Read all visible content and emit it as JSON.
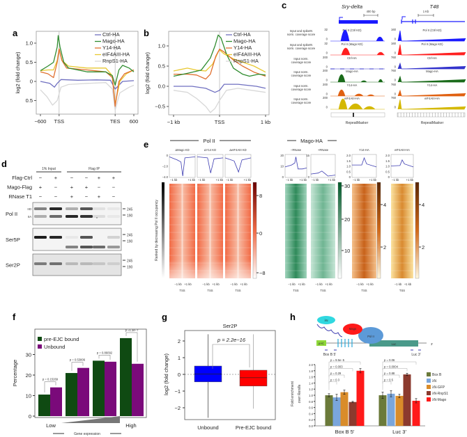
{
  "panel_labels": [
    "a",
    "b",
    "c",
    "d",
    "e",
    "f",
    "g",
    "h"
  ],
  "colors": {
    "ctrl": "#6f6fc0",
    "mago": "#2e8b2e",
    "y14": "#e07030",
    "eif": "#e8c830",
    "rnps1": "#d8d8d8",
    "polctrl": "#1a1aff",
    "polmago": "#ff2020",
    "ctrlha": "#3333cc",
    "magoha": "#1a6b1a",
    "y14ha": "#e06010",
    "eifha": "#d4b800"
  },
  "panel_c": {
    "gene1": "Sry-delta",
    "gene2": "T48",
    "scale1": "400 bp",
    "scale2": "1 Kb",
    "tracks": [
      {
        "label1": "Input and spikeIN",
        "label2": "norm. coverage score",
        "name": "Pol II (Ctrl KD)",
        "max1": "32",
        "max2": "160",
        "min": "0",
        "color": "#1a1aff"
      },
      {
        "label1": "Input and spikeIN",
        "label2": "norm. coverage score",
        "name": "Pol II (Mago KD)",
        "max1": "32",
        "max2": "160",
        "min": "0",
        "color": "#ff2020"
      },
      {
        "label1": "Input norm.",
        "label2": "coverage score",
        "name": "Ctrl-HA",
        "max1": "200",
        "max2": "760",
        "min": "0",
        "color": "#3333cc"
      },
      {
        "label1": "Input norm.",
        "label2": "coverage score",
        "name": "Mago-HA",
        "max1": "200",
        "max2": "760",
        "min": "0",
        "color": "#1a6b1a"
      },
      {
        "label1": "Input norm.",
        "label2": "coverage score",
        "name": "Y14-HA",
        "max1": "200",
        "max2": "760",
        "min": "0",
        "color": "#e06010"
      },
      {
        "label1": "Input norm.",
        "label2": "coverage score",
        "name": "eIF4AIII-HA",
        "max1": "200",
        "max2": "760",
        "min": "0",
        "color": "#d4b800"
      }
    ],
    "repeat_label": "RepeatMasker"
  },
  "panel_d": {
    "header_input": "1% Input",
    "header_ip": "Flag IP",
    "conditions": [
      {
        "name": "Flag-Ctrl",
        "values": [
          "−",
          "+",
          "−",
          "−",
          "+",
          "+"
        ]
      },
      {
        "name": "Mago-Flag",
        "values": [
          "+",
          "−",
          "+",
          "+",
          "−",
          "−"
        ]
      },
      {
        "name": "RNase T1",
        "values": [
          "−",
          "−",
          "+",
          "−",
          "+",
          "−"
        ]
      }
    ],
    "blots": [
      {
        "name": "Pol II",
        "markers": [
          "245",
          "190"
        ]
      },
      {
        "name": "Ser5P",
        "markers": [
          "245",
          "190"
        ]
      },
      {
        "name": "Ser2P",
        "markers": [
          "245",
          "190"
        ]
      }
    ],
    "iio": "IIO",
    "iia": "IIA",
    "star": "*"
  },
  "panel_e": {
    "group1": "Pol II",
    "group2": "Mago-HA",
    "ylabel": "Ranked by decreasing Pol II occupancy",
    "profiles": [
      {
        "title": "ΔMago KD",
        "ticks": [
          "0",
          "−2.0",
          "−4.0"
        ]
      },
      {
        "title": "ΔY14 KD",
        "ticks": []
      },
      {
        "title": "ΔeIF4AIII KD",
        "ticks": []
      },
      {
        "title": "−RNase",
        "ticks": [
          "20",
          "10",
          "0"
        ]
      },
      {
        "title": "+RNase",
        "ticks": [
          "15",
          "0"
        ]
      },
      {
        "title": "Y14-HA",
        "ticks": [
          "2.0",
          "1.5",
          "1.0",
          "0.5",
          "0"
        ]
      },
      {
        "title": "eIF4AIII-HA",
        "ticks": [
          "2.0",
          "1.5",
          "1.0",
          "0.5",
          "0"
        ]
      }
    ],
    "xl": "−1 kb",
    "xr": "+1 kb",
    "tss": "TSS",
    "colorbars": [
      {
        "ticks": [
          "8",
          "0",
          "−8"
        ]
      },
      {
        "ticks": [
          "30",
          "20",
          "10"
        ]
      },
      {
        "ticks": [
          "4",
          "2"
        ]
      },
      {
        "ticks": [
          "4",
          "2"
        ]
      }
    ]
  },
  "panel_h_diagram": {
    "labels": [
      "Mago",
      "λN",
      "Pol II",
      "pAC",
      "Luc",
      "3′",
      "Box B 5′",
      "Luc 3′"
    ]
  },
  "chart_data": [
    {
      "id": "a",
      "type": "line",
      "xlabel": "",
      "ylabel": "log2 (fold change)",
      "xticks": [
        {
          "x": 0,
          "label": "−600"
        },
        {
          "x": 20,
          "label": "TSS"
        },
        {
          "x": 80,
          "label": "TES"
        },
        {
          "x": 100,
          "label": "600"
        }
      ],
      "yticks": [
        {
          "y": 1.0,
          "label": "1.0"
        },
        {
          "y": 0.5,
          "label": "0.5"
        },
        {
          "y": 0,
          "label": "0"
        },
        {
          "y": -0.5,
          "label": "0.5"
        }
      ],
      "ylim": [
        -0.85,
        1.3
      ],
      "legend": "top-right",
      "series": [
        {
          "name": "Ctrl-HA",
          "color": "#6f6fc0",
          "x": [
            0,
            10,
            15,
            18,
            22,
            40,
            60,
            75,
            80,
            88,
            100
          ],
          "y": [
            0,
            -0.05,
            -0.15,
            -0.05,
            0.05,
            0.03,
            0.04,
            0.03,
            -0.2,
            0,
            0.02
          ]
        },
        {
          "name": "Mago-HA",
          "color": "#2e8b2e",
          "x": [
            0,
            8,
            14,
            18,
            19,
            21,
            25,
            30,
            50,
            70,
            77,
            80,
            84,
            88,
            95,
            100
          ],
          "y": [
            0.28,
            0.4,
            0.5,
            0.9,
            1.2,
            0.9,
            0.5,
            0.35,
            0.25,
            0.25,
            0.15,
            -0.1,
            0.3,
            0.42,
            0.35,
            0.25
          ]
        },
        {
          "name": "Y14-HA",
          "color": "#e07030",
          "x": [
            0,
            8,
            14,
            18,
            20,
            23,
            28,
            50,
            70,
            77,
            80,
            84,
            90,
            100
          ],
          "y": [
            0.25,
            0.2,
            0.1,
            0.5,
            0.85,
            0.55,
            0.35,
            0.3,
            0.25,
            0.1,
            -0.65,
            0,
            0.2,
            0.3
          ]
        },
        {
          "name": "eIF4AIII-HA",
          "color": "#e8c830",
          "x": [
            0,
            8,
            14,
            18,
            20,
            23,
            30,
            50,
            70,
            77,
            80,
            85,
            92,
            100
          ],
          "y": [
            0.28,
            0.3,
            0.3,
            0.55,
            0.85,
            0.55,
            0.4,
            0.35,
            0.35,
            0.15,
            -0.6,
            0,
            0.2,
            0.3
          ]
        },
        {
          "name": "RnpS1-HA",
          "color": "#d8d8d8",
          "x": [
            0,
            7,
            13,
            18,
            22,
            30,
            50,
            70,
            77,
            80,
            85,
            95,
            100
          ],
          "y": [
            -0.22,
            -0.4,
            -0.62,
            -0.5,
            -0.15,
            -0.08,
            -0.05,
            -0.03,
            -0.2,
            -0.75,
            -0.3,
            -0.15,
            -0.1
          ]
        }
      ]
    },
    {
      "id": "b",
      "type": "line",
      "xlabel": "",
      "ylabel": "log2 (fold change)",
      "xticks": [
        {
          "x": -1,
          "label": "−1 kb"
        },
        {
          "x": 0,
          "label": "TSS"
        },
        {
          "x": 1,
          "label": "1 kb"
        }
      ],
      "yticks": [
        {
          "y": 1.0,
          "label": "1.0"
        },
        {
          "y": 0.5,
          "label": "0.5"
        },
        {
          "y": 0,
          "label": "0.0"
        },
        {
          "y": -0.5,
          "label": "−0.5"
        }
      ],
      "ylim": [
        -0.7,
        1.35
      ],
      "legend": "top-right",
      "series": [
        {
          "name": "Ctrl-HA",
          "color": "#6f6fc0",
          "x": [
            -1,
            -0.6,
            -0.3,
            -0.1,
            0,
            0.1,
            0.4,
            0.8,
            1
          ],
          "y": [
            0,
            0,
            -0.05,
            -0.15,
            -0.1,
            0.05,
            0.05,
            0,
            -0.05
          ]
        },
        {
          "name": "Mago-HA",
          "color": "#2e8b2e",
          "x": [
            -1,
            -0.7,
            -0.4,
            -0.2,
            -0.1,
            -0.03,
            0.03,
            0.15,
            0.3,
            0.5,
            0.65,
            0.85,
            1
          ],
          "y": [
            0.25,
            0.32,
            0.4,
            0.7,
            1.0,
            1.27,
            1.2,
            0.8,
            0.45,
            0.3,
            0.25,
            0.3,
            0.28
          ]
        },
        {
          "name": "Y14-HA",
          "color": "#e07030",
          "x": [
            -1,
            -0.7,
            -0.5,
            -0.3,
            -0.2,
            -0.08,
            0,
            0.1,
            0.3,
            0.5,
            0.75,
            1
          ],
          "y": [
            0.3,
            0.3,
            0.28,
            0.18,
            0.3,
            0.75,
            0.92,
            0.85,
            0.65,
            0.5,
            0.35,
            0.25
          ]
        },
        {
          "name": "eIF4AIII-HA",
          "color": "#e8c830",
          "x": [
            -1,
            -0.7,
            -0.5,
            -0.3,
            -0.15,
            -0.03,
            0,
            0.1,
            0.3,
            0.5,
            0.75,
            1
          ],
          "y": [
            0.38,
            0.45,
            0.4,
            0.38,
            0.55,
            0.85,
            0.9,
            0.8,
            0.68,
            0.6,
            0.5,
            0.35
          ]
        },
        {
          "name": "RnpS1-HA",
          "color": "#d8d8d8",
          "x": [
            -1,
            -0.7,
            -0.5,
            -0.3,
            -0.2,
            -0.1,
            0,
            0.15,
            0.4,
            0.7,
            1
          ],
          "y": [
            -0.1,
            -0.15,
            -0.3,
            -0.5,
            -0.65,
            -0.55,
            -0.35,
            -0.1,
            -0.05,
            -0.1,
            -0.15
          ]
        }
      ]
    },
    {
      "id": "f",
      "type": "bar",
      "ylabel": "Percentage",
      "xlabel": "Gene expression",
      "x_low": "Low",
      "x_high": "High",
      "ylim": [
        0,
        40
      ],
      "yticks": [
        {
          "y": 0,
          "label": "0"
        },
        {
          "y": 10,
          "label": "10"
        },
        {
          "y": 20,
          "label": "20"
        },
        {
          "y": 30,
          "label": "30"
        }
      ],
      "legend": "top-left",
      "series": [
        {
          "name": "pre-EJC bound",
          "color": "#0f4a12",
          "values": [
            10.5,
            21,
            27,
            38
          ]
        },
        {
          "name": "Unbound",
          "color": "#7a0a7a",
          "values": [
            14,
            23.5,
            26.5,
            25.5
          ]
        }
      ],
      "pvalues": [
        "p = 0.15269",
        "p = 0.53806",
        "p = 0.86092",
        "p =1.3e−7"
      ]
    },
    {
      "id": "g",
      "type": "box",
      "title": "Ser2P",
      "ylabel": "log2 (fold change)",
      "ylim": [
        -2.8,
        2.6
      ],
      "yticks": [
        {
          "y": 2,
          "label": "2"
        },
        {
          "y": 1,
          "label": "1"
        },
        {
          "y": 0,
          "label": "0"
        },
        {
          "y": -1,
          "label": "−1"
        },
        {
          "y": -2,
          "label": "−2"
        }
      ],
      "categories": [
        "Unbound",
        "Pre-EJC bound"
      ],
      "boxes": [
        {
          "name": "Unbound",
          "color": "#0000ff",
          "q1": -0.45,
          "median": 0.02,
          "q3": 0.5,
          "min": -2.6,
          "max": 2.4
        },
        {
          "name": "Pre-EJC bound",
          "color": "#ff0000",
          "q1": -0.7,
          "median": -0.2,
          "q3": 0.25,
          "min": -2.05,
          "max": 2.4
        }
      ],
      "annotation": "p = 2.2e−16"
    },
    {
      "id": "h",
      "type": "bar",
      "ylabel1": "Fold enrichment",
      "ylabel2": "over Renilla",
      "ylim": [
        0,
        2.0
      ],
      "yticks": [
        "0.0",
        "0.2",
        "0.4",
        "0.6",
        "0.8",
        "1.0",
        "1.2",
        "1.4",
        "1.6",
        "1.8",
        "2.0"
      ],
      "categories": [
        "Box B 5′",
        "Luc 3′"
      ],
      "legend": "right",
      "series": [
        {
          "name": "Box B",
          "color": "#6b7a3a",
          "values": [
            1.0,
            1.0
          ],
          "err": [
            0.05,
            0.1
          ]
        },
        {
          "name": "λN",
          "color": "#7aa6dc",
          "values": [
            0.93,
            1.05
          ],
          "err": [
            0.1,
            0.1
          ]
        },
        {
          "name": "λN-GFP",
          "color": "#d98c2a",
          "values": [
            1.1,
            0.98
          ],
          "err": [
            0.07,
            0.06
          ]
        },
        {
          "name": "λN-RnpS1",
          "color": "#8b3a2e",
          "values": [
            0.78,
            1.68
          ],
          "err": [
            0.02,
            0.04
          ]
        },
        {
          "name": "λN-Mago",
          "color": "#ff1a1a",
          "values": [
            1.8,
            0.82
          ],
          "err": [
            0.07,
            0.07
          ]
        }
      ],
      "pvalues": [
        [
          "p = 9.5e−5",
          "p = 0.003",
          "p = 0.29",
          "p = 0.3"
        ],
        [
          "p = 0.06",
          "p = 0.0004",
          "p = 0.88",
          "p = 0.5"
        ]
      ]
    }
  ]
}
